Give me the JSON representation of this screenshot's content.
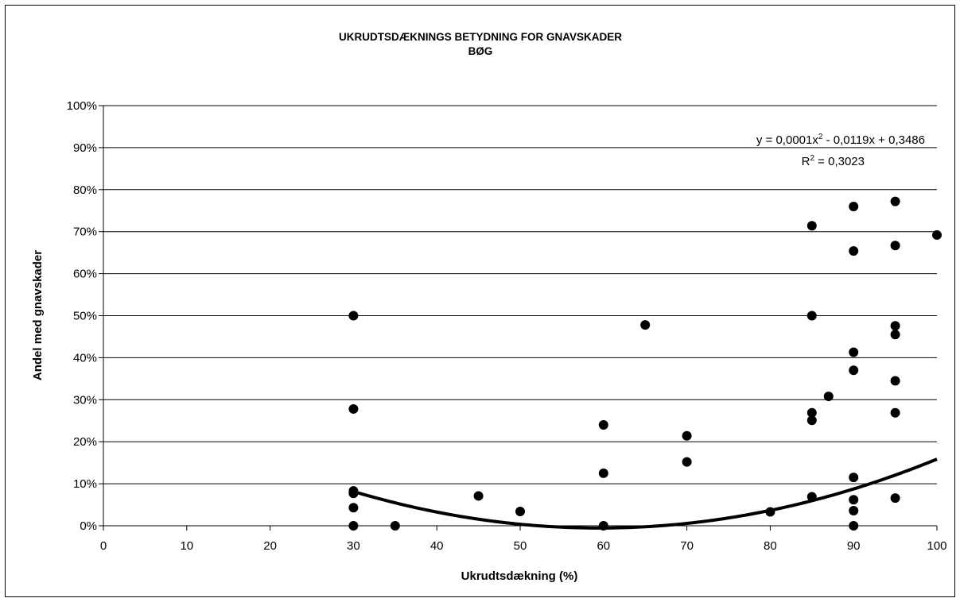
{
  "chart_data": {
    "type": "scatter",
    "title": "UKRUDTSDÆKNINGS BETYDNING FOR GNAVSKADER",
    "subtitle": "BØG",
    "xlabel": "Ukrudtsdækning (%)",
    "ylabel": "Andel med gnavskader",
    "xlim": [
      0,
      100
    ],
    "ylim": [
      0,
      100
    ],
    "x_ticks": [
      "0",
      "10",
      "20",
      "30",
      "40",
      "50",
      "60",
      "70",
      "80",
      "90",
      "100"
    ],
    "y_ticks": [
      "0%",
      "10%",
      "20%",
      "30%",
      "40%",
      "50%",
      "60%",
      "70%",
      "80%",
      "90%",
      "100%"
    ],
    "grid": "horizontal",
    "legend": "none",
    "points": [
      {
        "x": 30,
        "y": 50
      },
      {
        "x": 30,
        "y": 27.8
      },
      {
        "x": 30,
        "y": 8.3
      },
      {
        "x": 30,
        "y": 7.7
      },
      {
        "x": 30,
        "y": 4.3
      },
      {
        "x": 30,
        "y": 0
      },
      {
        "x": 35,
        "y": 0
      },
      {
        "x": 45,
        "y": 7.1
      },
      {
        "x": 50,
        "y": 3.4
      },
      {
        "x": 60,
        "y": 24
      },
      {
        "x": 60,
        "y": 12.5
      },
      {
        "x": 60,
        "y": 0
      },
      {
        "x": 65,
        "y": 47.8
      },
      {
        "x": 70,
        "y": 21.4
      },
      {
        "x": 70,
        "y": 15.2
      },
      {
        "x": 80,
        "y": 3.3
      },
      {
        "x": 85,
        "y": 71.4
      },
      {
        "x": 85,
        "y": 50
      },
      {
        "x": 85,
        "y": 26.9
      },
      {
        "x": 85,
        "y": 25.1
      },
      {
        "x": 85,
        "y": 6.9
      },
      {
        "x": 87,
        "y": 30.8
      },
      {
        "x": 90,
        "y": 76
      },
      {
        "x": 90,
        "y": 65.4
      },
      {
        "x": 90,
        "y": 41.3
      },
      {
        "x": 90,
        "y": 37
      },
      {
        "x": 90,
        "y": 11.5
      },
      {
        "x": 90,
        "y": 6.2
      },
      {
        "x": 90,
        "y": 3.6
      },
      {
        "x": 90,
        "y": 0
      },
      {
        "x": 95,
        "y": 77.2
      },
      {
        "x": 95,
        "y": 66.7
      },
      {
        "x": 95,
        "y": 47.6
      },
      {
        "x": 95,
        "y": 45.5
      },
      {
        "x": 95,
        "y": 34.5
      },
      {
        "x": 95,
        "y": 26.9
      },
      {
        "x": 95,
        "y": 6.6
      },
      {
        "x": 100,
        "y": 69.2
      }
    ],
    "trendline": {
      "type": "polynomial",
      "x_range": [
        30,
        100
      ],
      "coefficients": [
        0.0001,
        -0.0119,
        0.3486
      ],
      "equation_prefix": "y = 0,0001x",
      "equation_sup": "2",
      "equation_suffix": " - 0,0119x + 0,3486",
      "r2_prefix": "R",
      "r2_sup": "2",
      "r2_suffix": " = 0,3023"
    },
    "colors": {
      "points": "#000000",
      "trendline": "#000000",
      "grid": "#000000"
    }
  }
}
